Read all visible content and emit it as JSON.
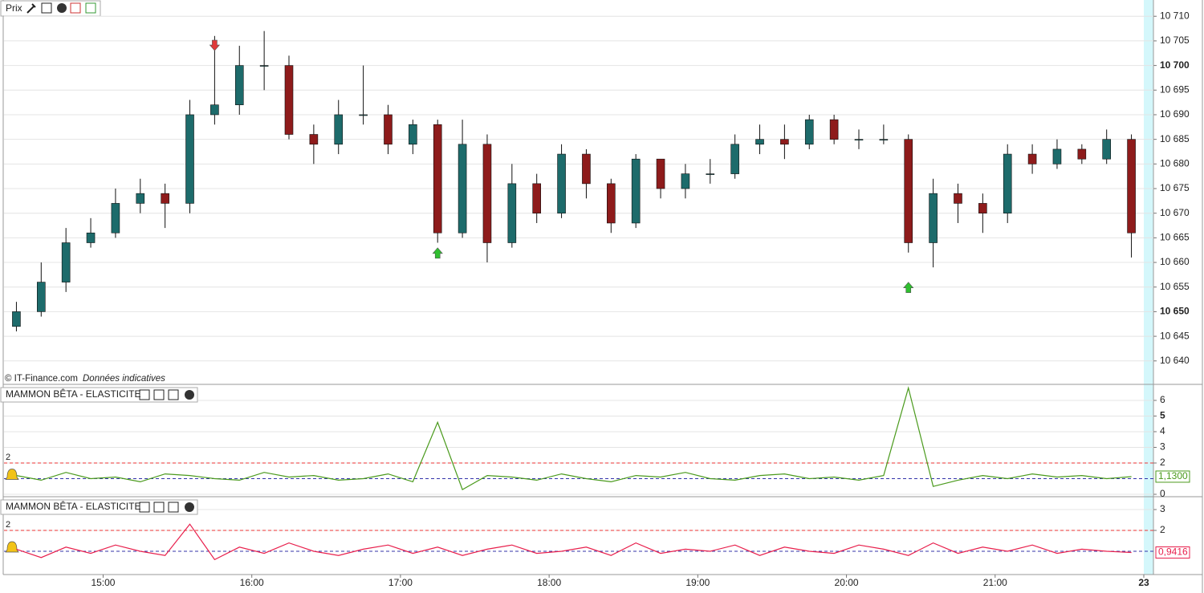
{
  "chart_data": [
    {
      "type": "candlestick",
      "title": "Prix",
      "copyright": "© IT-Finance.com",
      "note": "Données indicatives",
      "up_color": "#1d6b6b",
      "down_color": "#8e1b1b",
      "xlim": [
        0,
        46
      ],
      "xticks": [
        {
          "value": 4,
          "label": "15:00"
        },
        {
          "value": 10,
          "label": "16:00"
        },
        {
          "value": 16,
          "label": "17:00"
        },
        {
          "value": 22,
          "label": "18:00"
        },
        {
          "value": 28,
          "label": "19:00"
        },
        {
          "value": 34,
          "label": "20:00"
        },
        {
          "value": 40,
          "label": "21:00"
        },
        {
          "value": 46,
          "label": "23"
        }
      ],
      "bold_xticks": [
        46
      ],
      "ylim": [
        10635.4,
        10713.3
      ],
      "yticks": [
        {
          "value": 10640,
          "label": "10 640"
        },
        {
          "value": 10645,
          "label": "10 645"
        },
        {
          "value": 10650,
          "label": "10 650"
        },
        {
          "value": 10655,
          "label": "10 655"
        },
        {
          "value": 10660,
          "label": "10 660"
        },
        {
          "value": 10665,
          "label": "10 665"
        },
        {
          "value": 10670,
          "label": "10 670"
        },
        {
          "value": 10675,
          "label": "10 675"
        },
        {
          "value": 10680,
          "label": "10 680"
        },
        {
          "value": 10685,
          "label": "10 685"
        },
        {
          "value": 10690,
          "label": "10 690"
        },
        {
          "value": 10695,
          "label": "10 695"
        },
        {
          "value": 10700,
          "label": "10 700"
        },
        {
          "value": 10705,
          "label": "10 705"
        },
        {
          "value": 10710,
          "label": "10 710"
        }
      ],
      "bold_ticks": [
        10650,
        10700
      ],
      "open": [
        10647,
        10650,
        10656,
        10664,
        10666,
        10672,
        10674,
        10672,
        10690,
        10692,
        10700,
        10700,
        10686,
        10684,
        10690,
        10690,
        10684,
        10688,
        10666,
        10684,
        10664,
        10676,
        10670,
        10682,
        10676,
        10668,
        10681,
        10675,
        10678,
        10678,
        10684,
        10685,
        10684,
        10689,
        10685,
        10685,
        10685,
        10664,
        10674,
        10672,
        10670,
        10682,
        10680,
        10683,
        10681,
        10685
      ],
      "high": [
        10652,
        10660,
        10667,
        10669,
        10675,
        10677,
        10676,
        10693,
        10706,
        10704,
        10707,
        10702,
        10688,
        10693,
        10700,
        10692,
        10689,
        10689,
        10689,
        10686,
        10680,
        10678,
        10684,
        10683,
        10677,
        10682,
        10681,
        10680,
        10681,
        10686,
        10688,
        10688,
        10690,
        10690,
        10687,
        10688,
        10686,
        10677,
        10676,
        10674,
        10684,
        10684,
        10685,
        10684,
        10687,
        10686
      ],
      "low": [
        10646,
        10649,
        10654,
        10663,
        10665,
        10670,
        10667,
        10670,
        10688,
        10690,
        10695,
        10685,
        10680,
        10682,
        10688,
        10682,
        10682,
        10664,
        10665,
        10660,
        10663,
        10668,
        10669,
        10673,
        10666,
        10667,
        10673,
        10673,
        10676,
        10677,
        10682,
        10681,
        10683,
        10684,
        10683,
        10684,
        10662,
        10659,
        10668,
        10666,
        10668,
        10678,
        10679,
        10680,
        10680,
        10661
      ],
      "close": [
        10650,
        10656,
        10664,
        10666,
        10672,
        10674,
        10672,
        10690,
        10692,
        10700,
        10700,
        10686,
        10684,
        10690,
        10690,
        10684,
        10688,
        10666,
        10684,
        10664,
        10676,
        10670,
        10682,
        10676,
        10668,
        10681,
        10675,
        10678,
        10678,
        10684,
        10685,
        10684,
        10689,
        10685,
        10685,
        10685,
        10664,
        10674,
        10672,
        10670,
        10682,
        10680,
        10683,
        10681,
        10685,
        10666
      ],
      "signals": [
        {
          "index": 8,
          "price": 10704,
          "direction": "down"
        },
        {
          "index": 17,
          "price": 10662,
          "direction": "up"
        },
        {
          "index": 36,
          "price": 10655,
          "direction": "up"
        }
      ]
    },
    {
      "type": "line",
      "title": "MAMMON BÊTA - ELASTICITE",
      "color": "#4a9a1c",
      "ylim": [
        0,
        6.87
      ],
      "yticks": [
        0,
        2,
        3,
        4,
        5,
        6
      ],
      "bold_ticks": [
        5
      ],
      "upper_level": 2,
      "lower_level": 1,
      "values": [
        1.2,
        0.9,
        1.4,
        1.0,
        1.1,
        0.8,
        1.3,
        1.2,
        1.0,
        0.9,
        1.4,
        1.1,
        1.2,
        0.9,
        1.0,
        1.3,
        0.8,
        4.6,
        0.3,
        1.2,
        1.1,
        0.9,
        1.3,
        1.0,
        0.8,
        1.2,
        1.1,
        1.4,
        1.0,
        0.9,
        1.2,
        1.3,
        1.0,
        1.1,
        0.9,
        1.2,
        6.8,
        0.5,
        0.9,
        1.2,
        1.0,
        1.3,
        1.1,
        1.2,
        1.0,
        1.13
      ],
      "last_value": 1.13,
      "last_value_label": "1,1300"
    },
    {
      "type": "line",
      "title": "MAMMON BÊTA - ELASTICITE",
      "color": "#e81f4c",
      "ylim": [
        0,
        3.5
      ],
      "yticks": [
        2,
        3
      ],
      "bold_ticks": [],
      "upper_level": 2,
      "lower_level": 1,
      "values": [
        1.1,
        0.7,
        1.2,
        0.9,
        1.3,
        1.0,
        0.8,
        2.3,
        0.6,
        1.2,
        0.9,
        1.4,
        1.0,
        0.8,
        1.1,
        1.3,
        0.9,
        1.2,
        0.8,
        1.1,
        1.3,
        0.9,
        1.0,
        1.2,
        0.8,
        1.4,
        0.9,
        1.1,
        1.0,
        1.3,
        0.8,
        1.2,
        1.0,
        0.9,
        1.3,
        1.1,
        0.8,
        1.4,
        0.9,
        1.2,
        1.0,
        1.3,
        0.9,
        1.1,
        1.0,
        0.9416
      ],
      "last_value": 0.9416,
      "last_value_label": "0,9416"
    }
  ]
}
